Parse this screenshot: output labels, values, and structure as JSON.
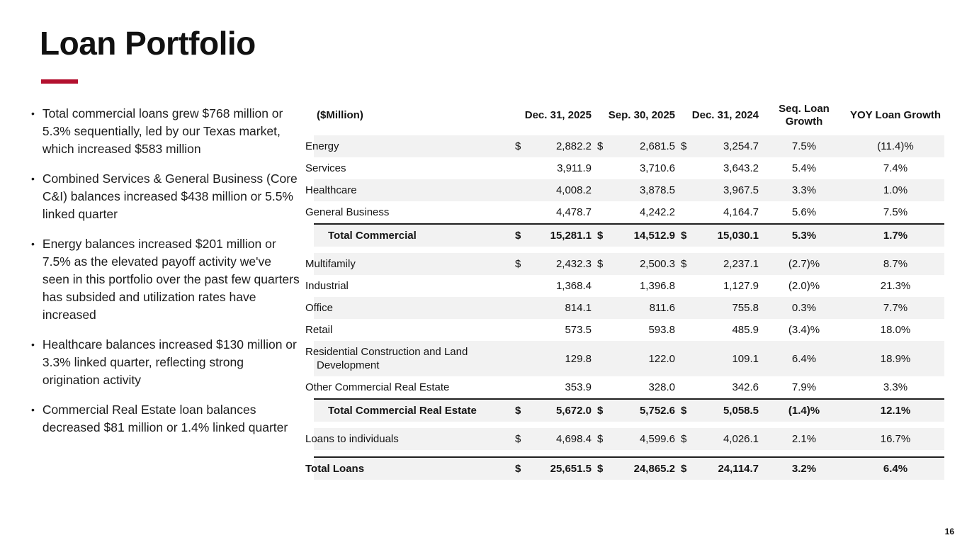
{
  "meta": {
    "bullet_char": "•",
    "accent_color": "#B3102E",
    "stripe_color": "#f2f2f2"
  },
  "slide": {
    "title": "Loan Portfolio",
    "page_number": "16"
  },
  "bullets": [
    "Total commercial loans grew $768 million or 5.3% sequentially, led by our Texas market, which increased $583 million",
    "Combined Services & General Business (Core C&I) balances increased $438 million or 5.5% linked quarter",
    "Energy balances increased $201 million or 7.5% as the elevated payoff activity we've seen in this portfolio over the past few quarters has subsided and utilization rates have increased",
    "Healthcare balances increased $130 million or 3.3% linked quarter, reflecting strong origination activity",
    "Commercial Real Estate loan balances decreased $81 million or 1.4% linked quarter"
  ],
  "table": {
    "headers": {
      "unit": "($Million)",
      "col1": "Dec. 31, 2025",
      "col2": "Sep. 30, 2025",
      "col3": "Dec. 31, 2024",
      "col4": "Seq. Loan Growth",
      "col5": "YOY Loan Growth"
    },
    "rows": [
      {
        "label": "Energy",
        "s1": "$",
        "v1": "2,882.2",
        "s2": "$",
        "v2": "2,681.5",
        "s3": "$",
        "v3": "3,254.7",
        "seq": "7.5%",
        "yoy": "(11.4)%",
        "shaded": true,
        "total": false,
        "indent": false,
        "gap_before": false
      },
      {
        "label": "Services",
        "s1": "",
        "v1": "3,911.9",
        "s2": "",
        "v2": "3,710.6",
        "s3": "",
        "v3": "3,643.2",
        "seq": "5.4%",
        "yoy": "7.4%",
        "shaded": false,
        "total": false,
        "indent": false,
        "gap_before": false
      },
      {
        "label": "Healthcare",
        "s1": "",
        "v1": "4,008.2",
        "s2": "",
        "v2": "3,878.5",
        "s3": "",
        "v3": "3,967.5",
        "seq": "3.3%",
        "yoy": "1.0%",
        "shaded": true,
        "total": false,
        "indent": false,
        "gap_before": false
      },
      {
        "label": "General Business",
        "s1": "",
        "v1": "4,478.7",
        "s2": "",
        "v2": "4,242.2",
        "s3": "",
        "v3": "4,164.7",
        "seq": "5.6%",
        "yoy": "7.5%",
        "shaded": false,
        "total": false,
        "indent": false,
        "gap_before": false
      },
      {
        "label": "Total Commercial",
        "s1": "$",
        "v1": "15,281.1",
        "s2": "$",
        "v2": "14,512.9",
        "s3": "$",
        "v3": "15,030.1",
        "seq": "5.3%",
        "yoy": "1.7%",
        "shaded": true,
        "total": true,
        "indent": true,
        "gap_before": false
      },
      {
        "label": "Multifamily",
        "s1": "$",
        "v1": "2,432.3",
        "s2": "$",
        "v2": "2,500.3",
        "s3": "$",
        "v3": "2,237.1",
        "seq": "(2.7)%",
        "yoy": "8.7%",
        "shaded": true,
        "total": false,
        "indent": false,
        "gap_before": true
      },
      {
        "label": "Industrial",
        "s1": "",
        "v1": "1,368.4",
        "s2": "",
        "v2": "1,396.8",
        "s3": "",
        "v3": "1,127.9",
        "seq": "(2.0)%",
        "yoy": "21.3%",
        "shaded": false,
        "total": false,
        "indent": false,
        "gap_before": false
      },
      {
        "label": "Office",
        "s1": "",
        "v1": "814.1",
        "s2": "",
        "v2": "811.6",
        "s3": "",
        "v3": "755.8",
        "seq": "0.3%",
        "yoy": "7.7%",
        "shaded": true,
        "total": false,
        "indent": false,
        "gap_before": false
      },
      {
        "label": "Retail",
        "s1": "",
        "v1": "573.5",
        "s2": "",
        "v2": "593.8",
        "s3": "",
        "v3": "485.9",
        "seq": "(3.4)%",
        "yoy": "18.0%",
        "shaded": false,
        "total": false,
        "indent": false,
        "gap_before": false
      },
      {
        "label": "Residential Construction and Land Development",
        "s1": "",
        "v1": "129.8",
        "s2": "",
        "v2": "122.0",
        "s3": "",
        "v3": "109.1",
        "seq": "6.4%",
        "yoy": "18.9%",
        "shaded": true,
        "total": false,
        "indent": false,
        "gap_before": false
      },
      {
        "label": "Other Commercial Real Estate",
        "s1": "",
        "v1": "353.9",
        "s2": "",
        "v2": "328.0",
        "s3": "",
        "v3": "342.6",
        "seq": "7.9%",
        "yoy": "3.3%",
        "shaded": false,
        "total": false,
        "indent": false,
        "gap_before": false
      },
      {
        "label": "Total Commercial Real Estate",
        "s1": "$",
        "v1": "5,672.0",
        "s2": "$",
        "v2": "5,752.6",
        "s3": "$",
        "v3": "5,058.5",
        "seq": "(1.4)%",
        "yoy": "12.1%",
        "shaded": true,
        "total": true,
        "indent": true,
        "gap_before": false
      },
      {
        "label": "Loans to individuals",
        "s1": "$",
        "v1": "4,698.4",
        "s2": "$",
        "v2": "4,599.6",
        "s3": "$",
        "v3": "4,026.1",
        "seq": "2.1%",
        "yoy": "16.7%",
        "shaded": true,
        "total": false,
        "indent": false,
        "gap_before": true
      },
      {
        "label": "Total Loans",
        "s1": "$",
        "v1": "25,651.5",
        "s2": "$",
        "v2": "24,865.2",
        "s3": "$",
        "v3": "24,114.7",
        "seq": "3.2%",
        "yoy": "6.4%",
        "shaded": true,
        "total": true,
        "indent": false,
        "gap_before": true
      }
    ]
  }
}
